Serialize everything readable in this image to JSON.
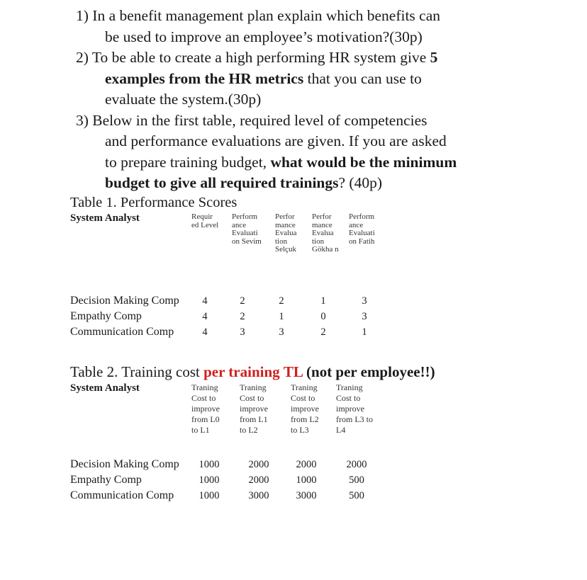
{
  "questions": [
    {
      "lines": [
        [
          {
            "t": "1) In a benefit management plan explain which benefits can"
          }
        ],
        [
          {
            "t": "be used to improve an employee’s motivation?(30p)"
          }
        ]
      ]
    },
    {
      "lines": [
        [
          {
            "t": "2) To be able to create a high performing HR system give "
          },
          {
            "t": "5",
            "b": true
          }
        ],
        [
          {
            "t": "examples from the HR metrics",
            "b": true
          },
          {
            "t": " that you can use to"
          }
        ],
        [
          {
            "t": "evaluate the system.(30p)"
          }
        ]
      ]
    },
    {
      "lines": [
        [
          {
            "t": "3) Below in the first table, required level of competencies"
          }
        ],
        [
          {
            "t": "and performance evaluations are given. If you are asked"
          }
        ],
        [
          {
            "t": "to prepare training budget, "
          },
          {
            "t": "what would be the minimum",
            "b": true
          }
        ],
        [
          {
            "t": "budget to give all required trainings",
            "b": true
          },
          {
            "t": "? (40p)"
          }
        ]
      ]
    }
  ],
  "table1": {
    "title": "Table 1. Performance Scores",
    "corner": "System Analyst",
    "headers": [
      "Requir ed Level",
      "Perform ance Evaluati on Sevim",
      "Perfor mance Evalua tion Selçuk",
      "Perfor mance Evalua tion Gökha n",
      "Perform ance Evaluati on Fatih"
    ],
    "rows": [
      {
        "label": "Decision Making Comp",
        "values": [
          "4",
          "2",
          "2",
          "1",
          "3"
        ]
      },
      {
        "label": "Empathy Comp",
        "values": [
          "4",
          "2",
          "1",
          "0",
          "3"
        ]
      },
      {
        "label": "Communication Comp",
        "values": [
          "4",
          "3",
          "3",
          "2",
          "1"
        ]
      }
    ]
  },
  "table2": {
    "title_parts": [
      {
        "t": "Table 2. Training cost "
      },
      {
        "t": "per training",
        "b": true,
        "red": true
      },
      {
        "t": " "
      },
      {
        "t": "TL",
        "b": true,
        "red": true
      },
      {
        "t": " (not per employee!!)",
        "b": true
      }
    ],
    "corner": "System Analyst",
    "headers": [
      "Traning Cost to improve from L0 to L1",
      "Traning Cost to improve from L1 to L2",
      "Traning Cost to improve from L2 to L3",
      "Traning Cost to improve from L3 to L4"
    ],
    "rows": [
      {
        "label": "Decision Making Comp",
        "values": [
          "1000",
          "2000",
          "2000",
          "2000"
        ]
      },
      {
        "label": "Empathy Comp",
        "values": [
          "1000",
          "2000",
          "1000",
          "500"
        ]
      },
      {
        "label": "Communication Comp",
        "values": [
          "1000",
          "3000",
          "3000",
          "500"
        ]
      }
    ]
  },
  "colors": {
    "accent_red": "#d0201e",
    "text": "#1a1a1a"
  }
}
